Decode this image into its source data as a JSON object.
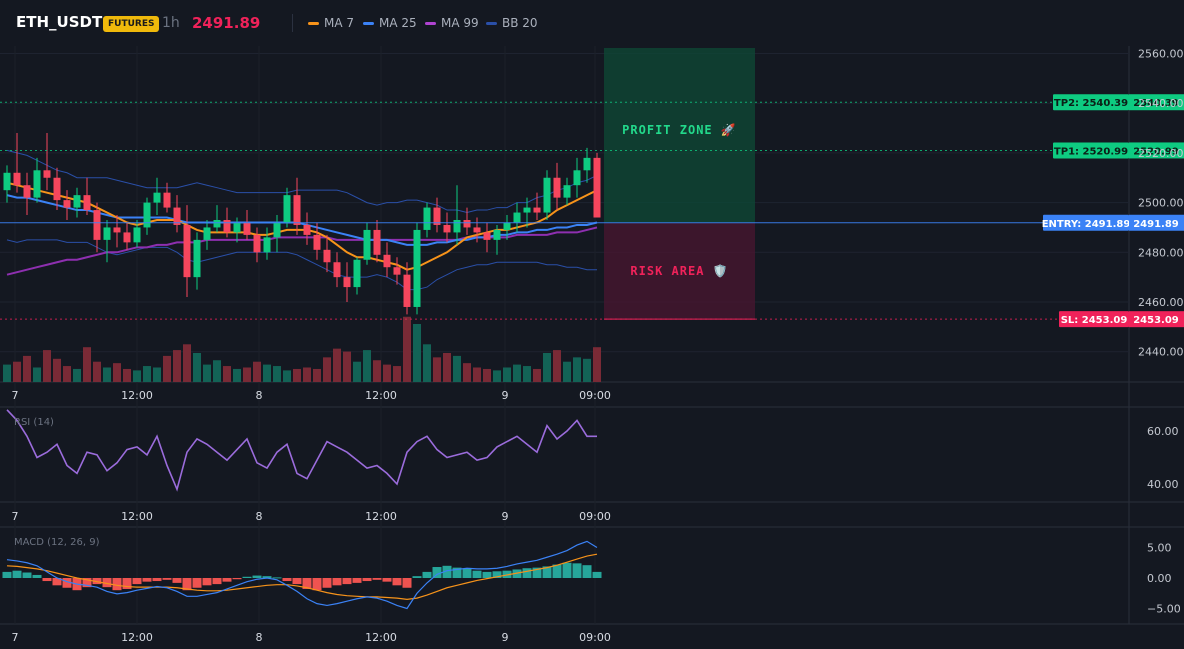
{
  "header": {
    "symbol": "ETH_USDT",
    "market_badge": "FUTURES",
    "timeframe": "1h",
    "last_price": "2491.89",
    "indicators": [
      {
        "label": "MA 7",
        "color": "#f7931a"
      },
      {
        "label": "MA 25",
        "color": "#3b82f6"
      },
      {
        "label": "MA 99",
        "color": "#b043d1"
      },
      {
        "label": "BB 20",
        "color": "#2a4fa8"
      }
    ]
  },
  "colors": {
    "up": "#0ecb81",
    "down": "#f6465d",
    "background": "#141821"
  },
  "zones": {
    "profit_label": "PROFIT ZONE 🚀",
    "risk_label": "RISK AREA 🛡️"
  },
  "levels": [
    {
      "name": "tp2",
      "label": "TP2: 2540.39",
      "value": 2540.39,
      "axis_label": "2540.39",
      "color": "#0ecb81"
    },
    {
      "name": "tp1",
      "label": "TP1: 2520.99",
      "value": 2520.99,
      "axis_label": "2520.99",
      "color": "#0ecb81"
    },
    {
      "name": "entry",
      "label": "ENTRY: 2491.89",
      "value": 2491.89,
      "axis_label": "2491.89",
      "color": "#3b82f6"
    },
    {
      "name": "sl",
      "label": "SL: 2453.09",
      "value": 2453.09,
      "axis_label": "2453.09",
      "color": "#f0225a"
    }
  ],
  "price_axis": {
    "ticks": [
      "2560.00",
      "2540.00",
      "2520.00",
      "2500.00",
      "2480.00",
      "2460.00",
      "2440.00"
    ]
  },
  "time_axis": {
    "labels": [
      "7",
      "12:00",
      "8",
      "12:00",
      "9",
      "09:00"
    ]
  },
  "rsi": {
    "title": "RSI (14)",
    "ticks": [
      "60.00",
      "40.00"
    ]
  },
  "macd": {
    "title": "MACD (12, 26, 9)",
    "ticks": [
      "5.00",
      "0.00",
      "−5.00"
    ]
  },
  "chart_data": {
    "type": "candlestick",
    "series": [
      {
        "name": "price",
        "ohlc": [
          [
            2505,
            2515,
            2500,
            2512
          ],
          [
            2512,
            2528,
            2504,
            2507
          ],
          [
            2507,
            2512,
            2495,
            2502
          ],
          [
            2502,
            2518,
            2500,
            2513
          ],
          [
            2513,
            2528,
            2505,
            2510
          ],
          [
            2510,
            2514,
            2497,
            2501
          ],
          [
            2501,
            2505,
            2493,
            2498
          ],
          [
            2498,
            2506,
            2494,
            2503
          ],
          [
            2503,
            2510,
            2495,
            2497
          ],
          [
            2497,
            2500,
            2480,
            2485
          ],
          [
            2485,
            2493,
            2476,
            2490
          ],
          [
            2490,
            2495,
            2482,
            2488
          ],
          [
            2488,
            2492,
            2481,
            2484
          ],
          [
            2484,
            2493,
            2482,
            2490
          ],
          [
            2490,
            2502,
            2487,
            2500
          ],
          [
            2500,
            2510,
            2495,
            2504
          ],
          [
            2504,
            2508,
            2496,
            2498
          ],
          [
            2498,
            2503,
            2488,
            2491
          ],
          [
            2491,
            2499,
            2462,
            2470
          ],
          [
            2470,
            2488,
            2465,
            2485
          ],
          [
            2485,
            2493,
            2481,
            2490
          ],
          [
            2490,
            2499,
            2488,
            2493
          ],
          [
            2493,
            2498,
            2486,
            2488
          ],
          [
            2488,
            2494,
            2484,
            2492
          ],
          [
            2492,
            2497,
            2485,
            2487
          ],
          [
            2487,
            2490,
            2476,
            2480
          ],
          [
            2480,
            2490,
            2477,
            2486
          ],
          [
            2486,
            2495,
            2480,
            2492
          ],
          [
            2492,
            2506,
            2490,
            2503
          ],
          [
            2503,
            2510,
            2487,
            2491
          ],
          [
            2491,
            2496,
            2483,
            2487
          ],
          [
            2487,
            2492,
            2477,
            2481
          ],
          [
            2481,
            2487,
            2472,
            2476
          ],
          [
            2476,
            2480,
            2466,
            2470
          ],
          [
            2470,
            2476,
            2460,
            2466
          ],
          [
            2466,
            2478,
            2463,
            2477
          ],
          [
            2477,
            2492,
            2475,
            2489
          ],
          [
            2489,
            2493,
            2476,
            2479
          ],
          [
            2479,
            2484,
            2470,
            2474
          ],
          [
            2474,
            2478,
            2467,
            2471
          ],
          [
            2471,
            2476,
            2455,
            2458
          ],
          [
            2458,
            2492,
            2455,
            2489
          ],
          [
            2489,
            2500,
            2486,
            2498
          ],
          [
            2498,
            2502,
            2488,
            2491
          ],
          [
            2491,
            2496,
            2484,
            2488
          ],
          [
            2488,
            2507,
            2483,
            2493
          ],
          [
            2493,
            2498,
            2487,
            2490
          ],
          [
            2490,
            2494,
            2484,
            2488
          ],
          [
            2488,
            2492,
            2480,
            2485
          ],
          [
            2485,
            2491,
            2479,
            2489
          ],
          [
            2489,
            2495,
            2485,
            2492
          ],
          [
            2492,
            2500,
            2488,
            2496
          ],
          [
            2496,
            2502,
            2490,
            2498
          ],
          [
            2498,
            2504,
            2493,
            2496
          ],
          [
            2496,
            2513,
            2493,
            2510
          ],
          [
            2510,
            2516,
            2497,
            2502
          ],
          [
            2502,
            2510,
            2499,
            2507
          ],
          [
            2507,
            2518,
            2502,
            2513
          ],
          [
            2513,
            2522,
            2508,
            2518
          ],
          [
            2518,
            2520,
            2494,
            2494
          ]
        ]
      }
    ],
    "volume": [
      12,
      14,
      18,
      10,
      22,
      16,
      11,
      9,
      24,
      14,
      10,
      13,
      9,
      8,
      11,
      10,
      18,
      22,
      26,
      20,
      12,
      15,
      11,
      9,
      10,
      14,
      12,
      11,
      8,
      9,
      10,
      9,
      17,
      23,
      21,
      14,
      22,
      15,
      12,
      11,
      45,
      40,
      26,
      17,
      20,
      18,
      13,
      10,
      9,
      8,
      10,
      12,
      11,
      9,
      20,
      22,
      14,
      17,
      16,
      24
    ],
    "ma7": [
      2508,
      2507,
      2506,
      2505,
      2504,
      2503,
      2502,
      2501,
      2500,
      2498,
      2496,
      2494,
      2492,
      2491,
      2492,
      2493,
      2493,
      2493,
      2491,
      2489,
      2488,
      2488,
      2488,
      2488,
      2488,
      2487,
      2487,
      2488,
      2489,
      2489,
      2489,
      2488,
      2486,
      2483,
      2480,
      2478,
      2478,
      2477,
      2476,
      2475,
      2473,
      2474,
      2476,
      2478,
      2480,
      2483,
      2486,
      2487,
      2488,
      2489,
      2489,
      2490,
      2491,
      2492,
      2494,
      2497,
      2499,
      2501,
      2503,
      2505
    ],
    "ma25": [
      2503,
      2502,
      2502,
      2501,
      2500,
      2499,
      2498,
      2497,
      2497,
      2496,
      2495,
      2494,
      2494,
      2494,
      2494,
      2494,
      2494,
      2493,
      2492,
      2492,
      2492,
      2492,
      2492,
      2492,
      2492,
      2492,
      2492,
      2492,
      2492,
      2492,
      2491,
      2490,
      2489,
      2488,
      2487,
      2486,
      2485,
      2485,
      2485,
      2484,
      2483,
      2483,
      2483,
      2484,
      2484,
      2485,
      2485,
      2486,
      2486,
      2487,
      2487,
      2488,
      2488,
      2489,
      2489,
      2490,
      2490,
      2491,
      2491,
      2492
    ],
    "ma99": [
      2471,
      2472,
      2473,
      2474,
      2475,
      2476,
      2477,
      2477,
      2478,
      2479,
      2480,
      2480,
      2481,
      2482,
      2482,
      2483,
      2483,
      2484,
      2484,
      2484,
      2485,
      2485,
      2485,
      2485,
      2485,
      2485,
      2485,
      2486,
      2486,
      2486,
      2486,
      2486,
      2486,
      2485,
      2485,
      2485,
      2485,
      2485,
      2485,
      2485,
      2485,
      2485,
      2485,
      2485,
      2485,
      2485,
      2486,
      2486,
      2486,
      2486,
      2486,
      2487,
      2487,
      2487,
      2487,
      2488,
      2488,
      2488,
      2489,
      2490
    ],
    "rsi": [
      68,
      64,
      58,
      50,
      52,
      55,
      47,
      44,
      52,
      51,
      45,
      48,
      53,
      54,
      51,
      58,
      47,
      38,
      52,
      57,
      55,
      52,
      49,
      53,
      57,
      48,
      46,
      52,
      55,
      44,
      42,
      49,
      56,
      54,
      52,
      49,
      46,
      47,
      44,
      40,
      52,
      56,
      58,
      53,
      50,
      51,
      52,
      49,
      50,
      54,
      56,
      58,
      55,
      52,
      62,
      57,
      60,
      64,
      58,
      58
    ],
    "macd_hist": [
      1.0,
      1.2,
      0.9,
      0.5,
      -0.5,
      -1.2,
      -1.6,
      -2.0,
      -1.5,
      -1.0,
      -1.5,
      -2.0,
      -1.8,
      -1.0,
      -0.6,
      -0.5,
      -0.3,
      -0.8,
      -2.0,
      -1.6,
      -1.2,
      -1.0,
      -0.6,
      -0.2,
      0.2,
      0.4,
      0.3,
      0.1,
      -0.5,
      -1.0,
      -1.8,
      -2.0,
      -1.6,
      -1.2,
      -1.0,
      -0.8,
      -0.5,
      -0.3,
      -0.6,
      -1.2,
      -1.6,
      0.3,
      1.0,
      1.8,
      2.0,
      1.7,
      1.5,
      1.2,
      1.0,
      1.1,
      1.2,
      1.4,
      1.6,
      1.7,
      1.9,
      2.2,
      2.5,
      2.4,
      2.1,
      1.0
    ],
    "macd_line": [
      3.0,
      2.8,
      2.5,
      2.0,
      1.0,
      0.0,
      -0.6,
      -1.0,
      -1.2,
      -1.5,
      -2.2,
      -2.6,
      -2.4,
      -2.0,
      -1.7,
      -1.4,
      -1.6,
      -2.2,
      -3.0,
      -3.0,
      -2.7,
      -2.4,
      -1.8,
      -1.2,
      -0.6,
      -0.2,
      0.0,
      -0.3,
      -1.2,
      -2.2,
      -3.4,
      -4.2,
      -4.5,
      -4.2,
      -3.8,
      -3.4,
      -3.1,
      -3.3,
      -3.8,
      -4.5,
      -5.0,
      -2.5,
      -0.8,
      0.6,
      1.2,
      1.4,
      1.6,
      1.5,
      1.5,
      1.6,
      1.9,
      2.3,
      2.6,
      2.9,
      3.4,
      3.9,
      4.5,
      5.4,
      6.0,
      5.0
    ],
    "macd_signal": [
      2.0,
      1.9,
      1.7,
      1.5,
      1.2,
      0.8,
      0.4,
      0.0,
      -0.3,
      -0.6,
      -0.9,
      -1.2,
      -1.4,
      -1.5,
      -1.5,
      -1.5,
      -1.5,
      -1.6,
      -1.8,
      -2.0,
      -2.1,
      -2.1,
      -2.0,
      -1.8,
      -1.6,
      -1.4,
      -1.2,
      -1.1,
      -1.1,
      -1.3,
      -1.6,
      -2.0,
      -2.4,
      -2.7,
      -2.9,
      -3.0,
      -3.1,
      -3.1,
      -3.2,
      -3.3,
      -3.5,
      -3.3,
      -2.8,
      -2.2,
      -1.6,
      -1.2,
      -0.8,
      -0.4,
      -0.1,
      0.2,
      0.5,
      0.8,
      1.1,
      1.4,
      1.7,
      2.1,
      2.6,
      3.1,
      3.6,
      3.9
    ]
  }
}
